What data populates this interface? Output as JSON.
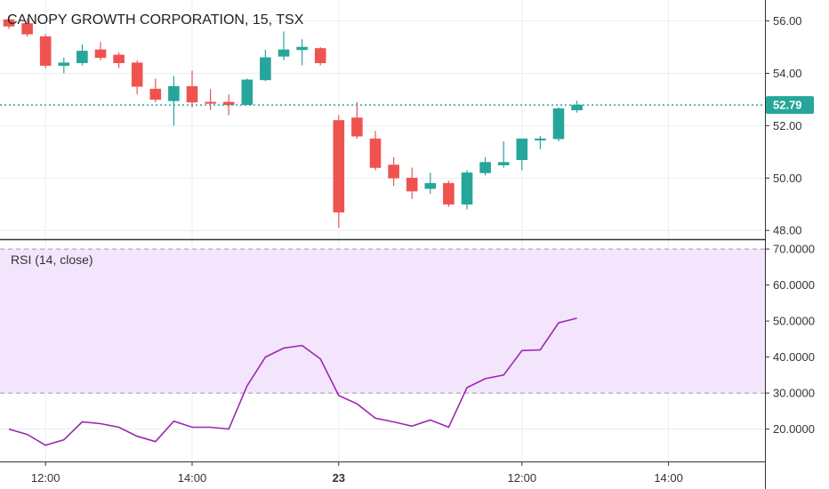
{
  "chart_data": {
    "type": "candlestick",
    "title": "CANOPY GROWTH CORPORATION, 15, TSX",
    "colors": {
      "up": "#26a69a",
      "down": "#ef5350",
      "rsi_line": "#9c27b0",
      "rsi_band": "#f3e5fc",
      "grid": "#e8eef3",
      "last_price": "#26a69a",
      "axis": "#333333"
    },
    "price_axis": {
      "ylim": [
        47.7,
        56.8
      ],
      "ticks": [
        "48.00",
        "50.00",
        "52.00",
        "54.00",
        "56.00"
      ]
    },
    "last_price": "52.79",
    "x_axis": {
      "ticks": [
        "12:00",
        "14:00",
        "23",
        "12:00",
        "14:00"
      ],
      "bold_tick": "23",
      "tick_bar_index": [
        2,
        10,
        18,
        28,
        36
      ]
    },
    "candles": [
      {
        "o": 56.05,
        "h": 56.2,
        "l": 55.7,
        "c": 55.8
      },
      {
        "o": 55.9,
        "h": 56.1,
        "l": 55.4,
        "c": 55.5
      },
      {
        "o": 55.4,
        "h": 55.5,
        "l": 54.2,
        "c": 54.3
      },
      {
        "o": 54.3,
        "h": 54.6,
        "l": 54.0,
        "c": 54.4
      },
      {
        "o": 54.4,
        "h": 55.1,
        "l": 54.3,
        "c": 54.85
      },
      {
        "o": 54.9,
        "h": 55.2,
        "l": 54.5,
        "c": 54.6
      },
      {
        "o": 54.7,
        "h": 54.8,
        "l": 54.2,
        "c": 54.4
      },
      {
        "o": 54.4,
        "h": 54.5,
        "l": 53.2,
        "c": 53.5
      },
      {
        "o": 53.4,
        "h": 53.8,
        "l": 52.9,
        "c": 53.0
      },
      {
        "o": 52.95,
        "h": 53.9,
        "l": 52.0,
        "c": 53.5
      },
      {
        "o": 53.5,
        "h": 54.1,
        "l": 52.7,
        "c": 52.9
      },
      {
        "o": 52.9,
        "h": 53.4,
        "l": 52.6,
        "c": 52.85
      },
      {
        "o": 52.9,
        "h": 53.2,
        "l": 52.4,
        "c": 52.8
      },
      {
        "o": 52.8,
        "h": 53.8,
        "l": 52.8,
        "c": 53.75
      },
      {
        "o": 53.75,
        "h": 54.9,
        "l": 53.7,
        "c": 54.6
      },
      {
        "o": 54.65,
        "h": 55.6,
        "l": 54.5,
        "c": 54.9
      },
      {
        "o": 54.9,
        "h": 55.3,
        "l": 54.3,
        "c": 55.0
      },
      {
        "o": 54.95,
        "h": 55.0,
        "l": 54.3,
        "c": 54.4
      },
      {
        "o": 52.2,
        "h": 52.4,
        "l": 48.1,
        "c": 48.7
      },
      {
        "o": 52.3,
        "h": 52.9,
        "l": 51.5,
        "c": 51.6
      },
      {
        "o": 51.5,
        "h": 51.8,
        "l": 50.3,
        "c": 50.4
      },
      {
        "o": 50.5,
        "h": 50.8,
        "l": 49.7,
        "c": 50.0
      },
      {
        "o": 50.0,
        "h": 50.4,
        "l": 49.2,
        "c": 49.5
      },
      {
        "o": 49.6,
        "h": 50.2,
        "l": 49.4,
        "c": 49.8
      },
      {
        "o": 49.8,
        "h": 49.9,
        "l": 48.9,
        "c": 49.0
      },
      {
        "o": 49.0,
        "h": 50.3,
        "l": 48.8,
        "c": 50.2
      },
      {
        "o": 50.2,
        "h": 50.8,
        "l": 50.1,
        "c": 50.6
      },
      {
        "o": 50.5,
        "h": 51.4,
        "l": 50.4,
        "c": 50.6
      },
      {
        "o": 50.7,
        "h": 51.5,
        "l": 50.3,
        "c": 51.5
      },
      {
        "o": 51.5,
        "h": 51.6,
        "l": 51.1,
        "c": 51.5
      },
      {
        "o": 51.5,
        "h": 52.7,
        "l": 51.4,
        "c": 52.65
      },
      {
        "o": 52.6,
        "h": 52.95,
        "l": 52.5,
        "c": 52.79
      }
    ],
    "rsi": {
      "label": "RSI (14, close)",
      "ylim": [
        11,
        72.5
      ],
      "ticks": [
        "20.0000",
        "30.0000",
        "40.0000",
        "50.0000",
        "60.0000",
        "70.0000"
      ],
      "band": [
        30,
        70
      ],
      "values": [
        20.0,
        18.5,
        15.5,
        17.0,
        22.0,
        21.5,
        20.5,
        18.0,
        16.5,
        22.2,
        20.5,
        20.5,
        20.0,
        32.0,
        40.0,
        42.5,
        43.2,
        39.5,
        29.3,
        27.0,
        23.0,
        22.0,
        20.8,
        22.5,
        20.5,
        31.5,
        34.0,
        35.0,
        41.8,
        42.0,
        49.5,
        50.8
      ]
    }
  }
}
